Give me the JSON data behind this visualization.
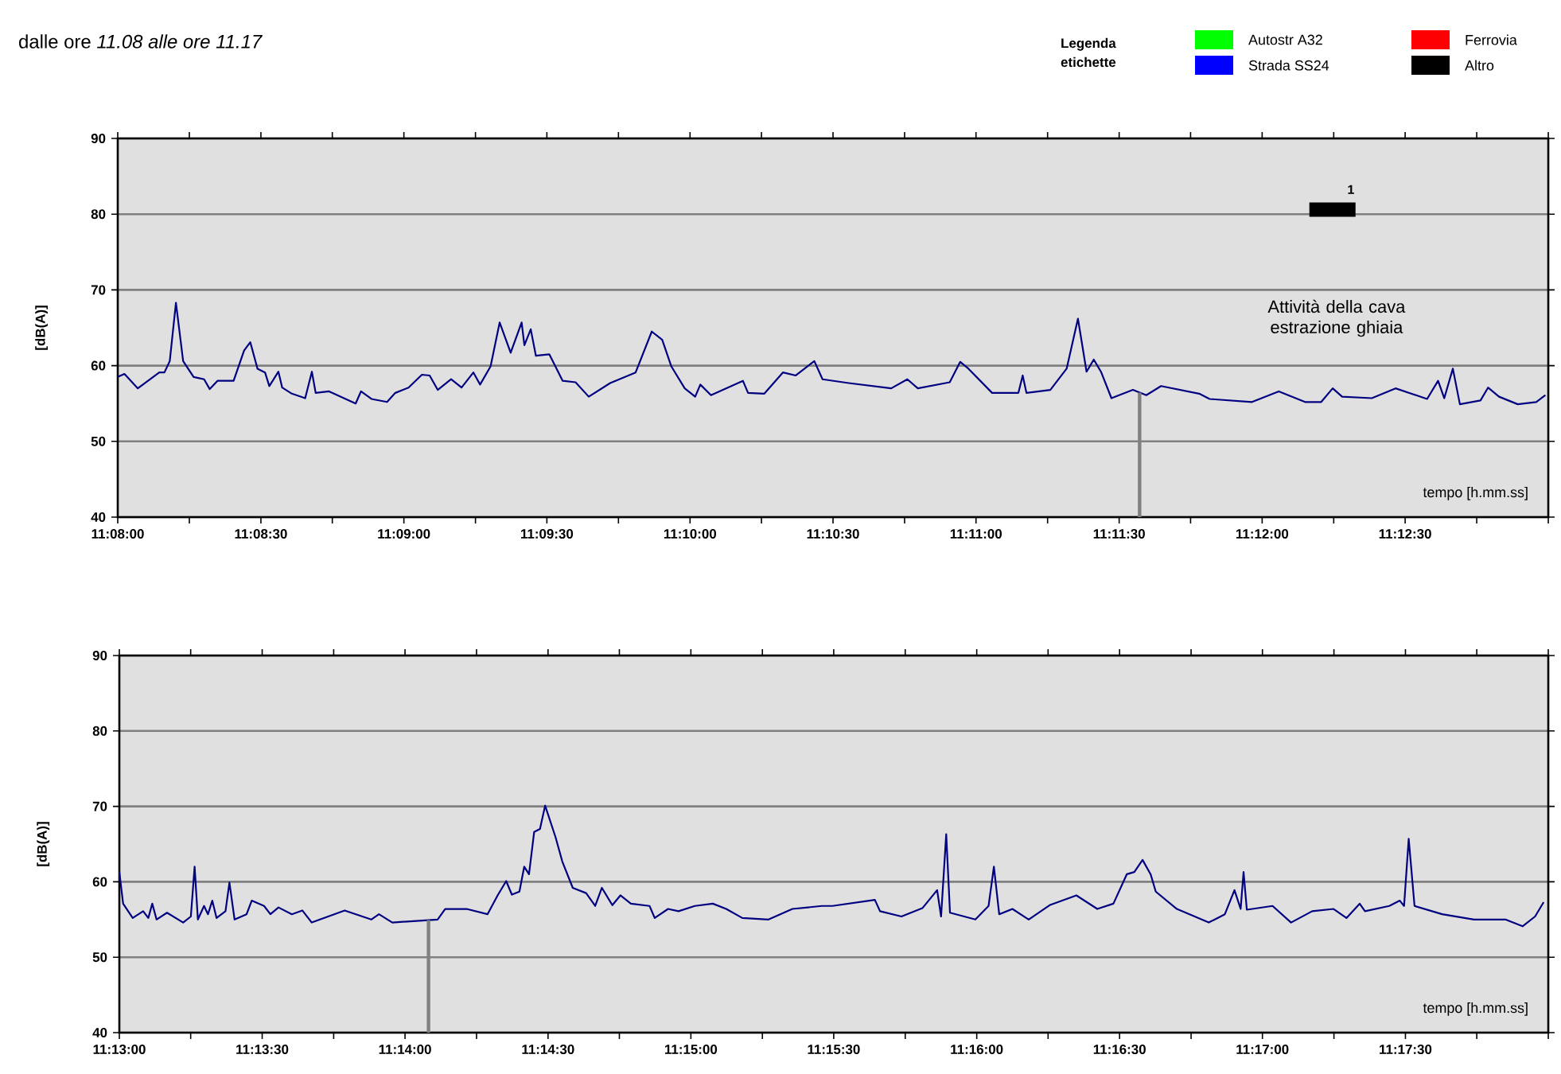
{
  "chart_data": [
    {
      "type": "line",
      "title": "dalle ore *11.08   alle ore   11.17*",
      "xlabel": "tempo [h.mm.ss]",
      "ylabel": "[dB(A)]",
      "legend_title": "Legenda etichette",
      "legend": "top right",
      "grid": "y",
      "xlim": [
        11.13333,
        11.21667
      ],
      "ylim": [
        40,
        90
      ],
      "yticks": [
        40,
        50,
        60,
        70,
        80,
        90
      ],
      "xticks": [
        {
          "value": 11.13333,
          "label": "11:08:00"
        },
        {
          "value": 11.1375,
          "label": null
        },
        {
          "value": 11.14167,
          "label": "11:08:30"
        },
        {
          "value": 11.14583,
          "label": null
        },
        {
          "value": 11.15,
          "label": "11:09:00"
        },
        {
          "value": 11.15417,
          "label": null
        },
        {
          "value": 11.15833,
          "label": "11:09:30"
        },
        {
          "value": 11.1625,
          "label": null
        },
        {
          "value": 11.16667,
          "label": "11:10:00"
        },
        {
          "value": 11.17083,
          "label": null
        },
        {
          "value": 11.175,
          "label": "11:10:30"
        },
        {
          "value": 11.17917,
          "label": null
        },
        {
          "value": 11.18333,
          "label": "11:11:00"
        },
        {
          "value": 11.1875,
          "label": null
        },
        {
          "value": 11.19167,
          "label": "11:11:30"
        },
        {
          "value": 11.19583,
          "label": null
        },
        {
          "value": 11.2,
          "label": "11:12:00"
        },
        {
          "value": 11.20417,
          "label": null
        },
        {
          "value": 11.20833,
          "label": "11:12:30"
        },
        {
          "value": 11.2125,
          "label": null
        },
        {
          "value": 11.21667,
          "label": null
        }
      ],
      "series": [
        {
          "color": "#000080",
          "x": [
            11.13333,
            11.13372,
            11.1345,
            11.13575,
            11.13605,
            11.13636,
            11.13672,
            11.13714,
            11.13775,
            11.13836,
            11.13869,
            11.13914,
            11.14008,
            11.14069,
            11.14105,
            11.14147,
            11.14191,
            11.14216,
            11.14269,
            11.14291,
            11.14347,
            11.14425,
            11.14464,
            11.14486,
            11.14564,
            11.14719,
            11.1475,
            11.14811,
            11.14902,
            11.1495,
            11.15027,
            11.15105,
            11.1515,
            11.15197,
            11.15275,
            11.15336,
            11.15405,
            11.15444,
            11.15505,
            11.15558,
            11.15622,
            11.15686,
            11.15702,
            11.15739,
            11.15769,
            11.15847,
            11.15925,
            11.16,
            11.16077,
            11.16202,
            11.1635,
            11.16444,
            11.16505,
            11.16558,
            11.16636,
            11.16697,
            11.16727,
            11.16789,
            11.16975,
            11.17005,
            11.171,
            11.17208,
            11.17283,
            11.17391,
            11.17439,
            11.17591,
            11.17839,
            11.17933,
            11.17994,
            11.1818,
            11.18241,
            11.18289,
            11.18427,
            11.1858,
            11.18605,
            11.18627,
            11.18766,
            11.18861,
            11.18927,
            11.18977,
            11.19019,
            11.19061,
            11.19122,
            11.19247,
            11.19325,
            11.19411,
            11.19633,
            11.19694,
            11.19941,
            11.20097,
            11.2025,
            11.20344,
            11.20411,
            11.20466,
            11.20639,
            11.20777,
            11.20961,
            11.21025,
            11.21061,
            11.21111,
            11.21152,
            11.21272,
            11.21316,
            11.2138,
            11.21489,
            11.21597,
            11.2165
          ],
          "values": [
            58.5,
            58.9,
            57.0,
            59.1,
            59.1,
            60.6,
            68.3,
            60.6,
            58.5,
            58.2,
            56.9,
            58.0,
            58.0,
            62.0,
            63.1,
            59.6,
            59.1,
            57.3,
            59.2,
            57.1,
            56.3,
            55.7,
            59.2,
            56.4,
            56.6,
            55.0,
            56.6,
            55.6,
            55.2,
            56.4,
            57.1,
            58.8,
            58.7,
            56.8,
            58.2,
            57.1,
            59.1,
            57.5,
            59.9,
            65.7,
            61.7,
            65.7,
            62.7,
            64.8,
            61.3,
            61.5,
            58.0,
            57.8,
            55.9,
            57.7,
            59.1,
            64.5,
            63.4,
            59.9,
            57.0,
            55.9,
            57.5,
            56.1,
            58.0,
            56.4,
            56.3,
            59.1,
            58.7,
            60.6,
            58.2,
            57.7,
            57.0,
            58.2,
            57.0,
            57.8,
            60.5,
            59.6,
            56.4,
            56.4,
            58.7,
            56.4,
            56.8,
            59.6,
            66.2,
            59.2,
            60.8,
            59.2,
            55.7,
            56.8,
            56.1,
            57.3,
            56.3,
            55.6,
            55.2,
            56.6,
            55.2,
            55.2,
            57.0,
            55.9,
            55.7,
            57.0,
            55.6,
            58.0,
            55.7,
            59.6,
            54.9,
            55.4,
            57.1,
            55.9,
            54.9,
            55.2,
            56.1
          ]
        },
        {
          "name": "Autostr A32",
          "color": "#00ff00"
        },
        {
          "name": "Ferrovia",
          "color": "#ff0000"
        },
        {
          "name": "Strada SS24",
          "color": "#0000ff"
        },
        {
          "name": "Altro",
          "color": "#000000",
          "x": [
            11.20275,
            11.20544
          ],
          "values": [
            80.6,
            80.6
          ]
        }
      ],
      "ref_lines": [
        {
          "axis": "x",
          "value": 11.19286,
          "color": "#808080"
        }
      ],
      "annotations": [
        "1",
        "Attività della cava estrazione ghiaia"
      ]
    },
    {
      "type": "line",
      "xlabel": "tempo [h.mm.ss]",
      "ylabel": "[dB(A)]",
      "grid": "y",
      "xlim": [
        11.21667,
        11.3
      ],
      "ylim": [
        40,
        90
      ],
      "yticks": [
        40,
        50,
        60,
        70,
        80,
        90
      ],
      "xticks": [
        {
          "value": 11.21667,
          "label": "11:13:00"
        },
        {
          "value": 11.22083,
          "label": null
        },
        {
          "value": 11.225,
          "label": "11:13:30"
        },
        {
          "value": 11.22917,
          "label": null
        },
        {
          "value": 11.23333,
          "label": "11:14:00"
        },
        {
          "value": 11.2375,
          "label": null
        },
        {
          "value": 11.24167,
          "label": "11:14:30"
        },
        {
          "value": 11.24583,
          "label": null
        },
        {
          "value": 11.25,
          "label": "11:15:00"
        },
        {
          "value": 11.25417,
          "label": null
        },
        {
          "value": 11.25833,
          "label": "11:15:30"
        },
        {
          "value": 11.2625,
          "label": null
        },
        {
          "value": 11.26667,
          "label": "11:16:00"
        },
        {
          "value": 11.27083,
          "label": null
        },
        {
          "value": 11.275,
          "label": "11:16:30"
        },
        {
          "value": 11.27917,
          "label": null
        },
        {
          "value": 11.28333,
          "label": "11:17:00"
        },
        {
          "value": 11.2875,
          "label": null
        },
        {
          "value": 11.29167,
          "label": "11:17:30"
        },
        {
          "value": 11.29583,
          "label": null
        },
        {
          "value": 11.3,
          "label": null
        }
      ],
      "series": [
        {
          "color": "#000080",
          "x": [
            11.21667,
            11.21689,
            11.21745,
            11.21806,
            11.21836,
            11.21859,
            11.21884,
            11.21945,
            11.22039,
            11.22084,
            11.22106,
            11.22125,
            11.22161,
            11.22184,
            11.22209,
            11.22234,
            11.22286,
            11.22309,
            11.22339,
            11.22409,
            11.22439,
            11.22511,
            11.22548,
            11.22595,
            11.22673,
            11.22734,
            11.22789,
            11.22981,
            11.23136,
            11.23181,
            11.23259,
            11.23523,
            11.23567,
            11.23692,
            11.23814,
            11.23873,
            11.23923,
            11.23956,
            11.24,
            11.24028,
            11.24056,
            11.24086,
            11.2412,
            11.2415,
            11.24211,
            11.2425,
            11.24311,
            11.24389,
            11.24442,
            11.24481,
            11.24542,
            11.24589,
            11.2465,
            11.24759,
            11.24789,
            11.24867,
            11.24928,
            11.25023,
            11.25128,
            11.25206,
            11.253,
            11.25453,
            11.25592,
            11.25764,
            11.25825,
            11.26073,
            11.26103,
            11.26228,
            11.2635,
            11.26436,
            11.26459,
            11.26489,
            11.26511,
            11.26659,
            11.26736,
            11.26767,
            11.26798,
            11.26875,
            11.2697,
            11.27092,
            11.27248,
            11.2737,
            11.27464,
            11.27542,
            11.27586,
            11.27634,
            11.27681,
            11.27711,
            11.27834,
            11.2802,
            11.28114,
            11.2817,
            11.28206,
            11.28223,
            11.28242,
            11.28392,
            11.285,
            11.28623,
            11.28748,
            11.28823,
            11.289,
            11.28931,
            11.29073,
            11.29134,
            11.29159,
            11.29186,
            11.2922,
            11.29381,
            11.29567,
            11.2975,
            11.2985,
            11.29923,
            11.29973
          ],
          "values": [
            61.3,
            57.1,
            55.2,
            56.1,
            55.2,
            57.1,
            55.0,
            55.9,
            54.6,
            55.4,
            62.0,
            55.0,
            56.8,
            55.7,
            57.5,
            55.2,
            56.1,
            59.9,
            55.0,
            55.7,
            57.5,
            56.8,
            55.7,
            56.6,
            55.7,
            56.2,
            54.6,
            56.2,
            55.0,
            55.7,
            54.6,
            55.0,
            56.4,
            56.4,
            55.7,
            58.2,
            60.1,
            58.3,
            58.7,
            62.0,
            61.0,
            66.6,
            67.0,
            70.1,
            65.9,
            62.7,
            59.2,
            58.5,
            56.8,
            59.2,
            56.9,
            58.2,
            57.1,
            56.8,
            55.2,
            56.4,
            56.1,
            56.8,
            57.1,
            56.4,
            55.2,
            55.0,
            56.4,
            56.8,
            56.8,
            57.6,
            56.1,
            55.4,
            56.5,
            58.9,
            55.4,
            66.3,
            55.9,
            55.0,
            56.8,
            62.0,
            55.7,
            56.4,
            55.0,
            56.9,
            58.2,
            56.4,
            57.1,
            61.0,
            61.3,
            62.9,
            61.0,
            58.7,
            56.4,
            54.6,
            55.7,
            58.9,
            56.4,
            61.3,
            56.3,
            56.8,
            54.6,
            56.1,
            56.4,
            55.2,
            57.1,
            56.1,
            56.8,
            57.5,
            56.8,
            65.7,
            56.8,
            55.7,
            55.0,
            55.0,
            54.1,
            55.4,
            57.3
          ]
        }
      ],
      "ref_lines": [
        {
          "axis": "x",
          "value": 11.2347,
          "color": "#808080"
        }
      ]
    }
  ]
}
